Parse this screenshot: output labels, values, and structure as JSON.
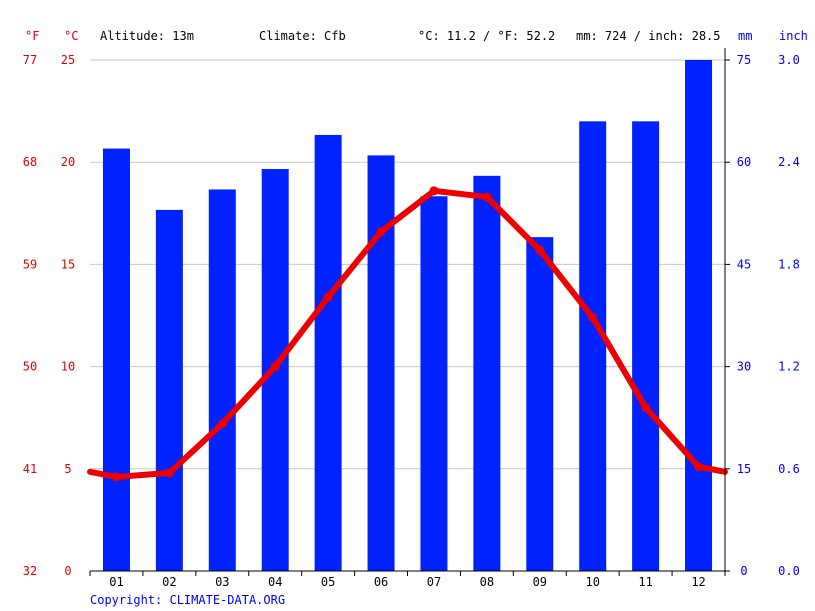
{
  "header": {
    "unit_f": "°F",
    "unit_c": "°C",
    "altitude": "Altitude: 13m",
    "climate": "Climate: Cfb",
    "temp_avg": "°C: 11.2 / °F: 52.2",
    "precip_total": "mm: 724 / inch: 28.5",
    "unit_mm": "mm",
    "unit_inch": "inch"
  },
  "colors": {
    "precip_bar": "#0022ff",
    "temperature_line": "#ee0000",
    "gridline": "#c8c8c8",
    "left_ticks": "#e60000",
    "right_ticks": "#0000ff"
  },
  "copyright": "Copyright: CLIMATE-DATA.ORG",
  "chart_data": {
    "type": "bar",
    "title": "",
    "categories": [
      "01",
      "02",
      "03",
      "04",
      "05",
      "06",
      "07",
      "08",
      "09",
      "10",
      "11",
      "12"
    ],
    "series": [
      {
        "type": "bar",
        "axis": "right",
        "unit": "mm",
        "values": [
          62,
          53,
          56,
          59,
          64,
          61,
          55,
          58,
          49,
          66,
          66,
          75
        ]
      },
      {
        "type": "line",
        "axis": "left",
        "unit": "°C",
        "values": [
          4.6,
          4.8,
          7.2,
          10.0,
          13.4,
          16.6,
          18.6,
          18.3,
          15.7,
          12.4,
          8.0,
          5.1
        ]
      }
    ],
    "temp_axis": {
      "celsius_ticks": [
        0,
        5,
        10,
        15,
        20,
        25
      ],
      "fahrenheit_ticks": [
        32,
        41,
        50,
        59,
        68,
        77
      ],
      "ylim": [
        0,
        25
      ]
    },
    "precip_axis": {
      "mm_ticks": [
        0,
        15,
        30,
        45,
        60,
        75
      ],
      "inch_ticks": [
        "0.0",
        "0.6",
        "1.2",
        "1.8",
        "2.4",
        "3.0"
      ],
      "ylim": [
        0,
        75
      ]
    },
    "grid": true
  }
}
